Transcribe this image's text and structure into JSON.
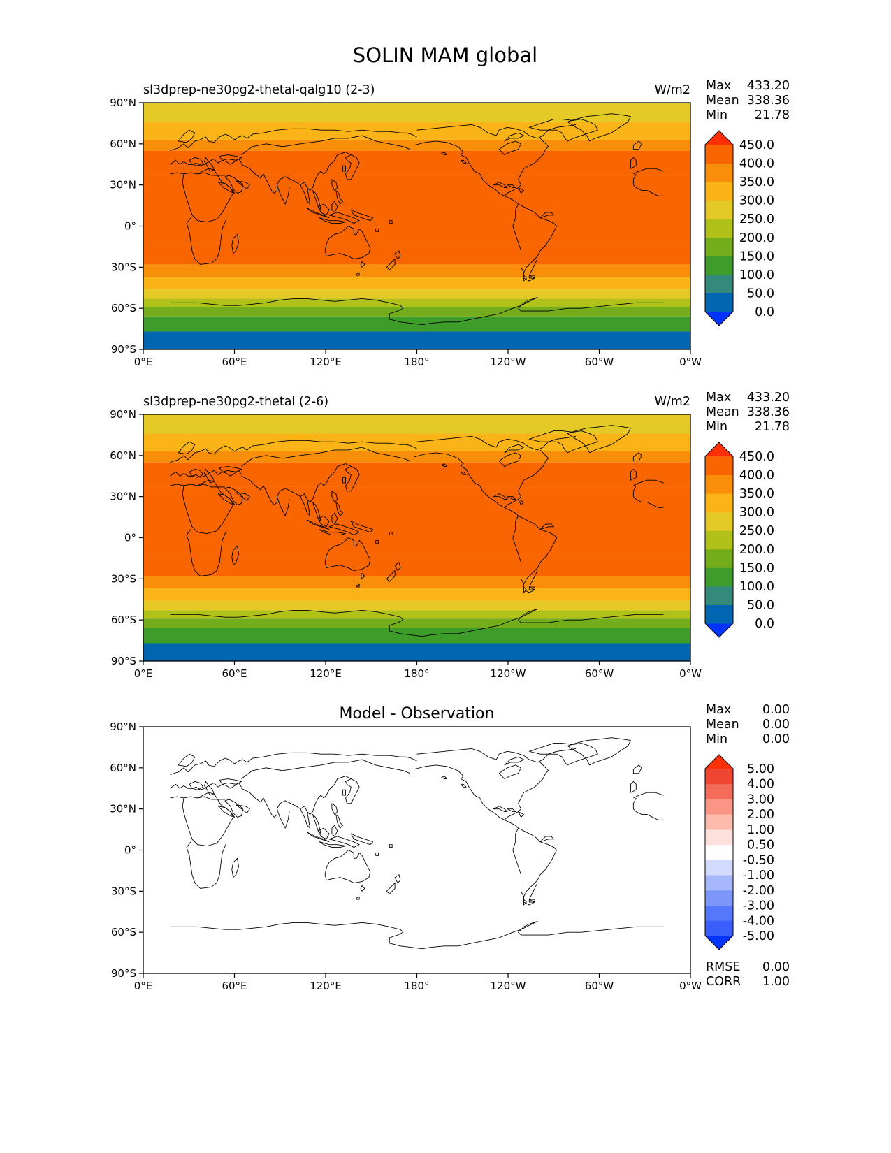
{
  "figure": {
    "title": "SOLIN MAM global"
  },
  "chart_data": [
    {
      "type": "heatmap",
      "title": "sl3dprep-ne30pg2-thetal-qalg10 (2-3)",
      "units": "W/m2",
      "stats": {
        "Max": "433.20",
        "Mean": "338.36",
        "Min": "21.78"
      },
      "x_tick_labels": [
        "0°E",
        "60°E",
        "120°E",
        "180°",
        "120°W",
        "60°W",
        "0°W"
      ],
      "y_tick_labels": [
        "90°S",
        "60°S",
        "30°S",
        "0°",
        "30°N",
        "60°N",
        "90°N"
      ],
      "xlim": [
        0,
        360
      ],
      "ylim": [
        -90,
        90
      ],
      "colorbar_levels": [
        0,
        50,
        100,
        150,
        200,
        250,
        300,
        350,
        400,
        450
      ],
      "colorbar_labels": [
        "0.0",
        "50.0",
        "100.0",
        "150.0",
        "200.0",
        "250.0",
        "300.0",
        "350.0",
        "400.0",
        "450.0"
      ],
      "colorbar_colors": [
        "#0033ff",
        "#0166b2",
        "#33897a",
        "#3d9c2a",
        "#74ad1c",
        "#b0c21a",
        "#e5c926",
        "#fbb418",
        "#f98e0b",
        "#f96500",
        "#ff2f06"
      ],
      "latitude_bands": [
        {
          "lat_from": -90,
          "lat_to": -77,
          "value": 21.78
        },
        {
          "lat_from": -77,
          "lat_to": -66,
          "value": 100
        },
        {
          "lat_from": -66,
          "lat_to": -59,
          "value": 150
        },
        {
          "lat_from": -59,
          "lat_to": -53,
          "value": 200
        },
        {
          "lat_from": -53,
          "lat_to": -46,
          "value": 250
        },
        {
          "lat_from": -46,
          "lat_to": -37,
          "value": 300
        },
        {
          "lat_from": -37,
          "lat_to": -28,
          "value": 350
        },
        {
          "lat_from": -28,
          "lat_to": -12,
          "value": 400
        },
        {
          "lat_from": -12,
          "lat_to": 37,
          "value": 433.2
        },
        {
          "lat_from": 37,
          "lat_to": 55,
          "value": 400
        },
        {
          "lat_from": 55,
          "lat_to": 63,
          "value": 350
        },
        {
          "lat_from": 63,
          "lat_to": 76,
          "value": 300
        },
        {
          "lat_from": 76,
          "lat_to": 90,
          "value": 250
        }
      ]
    },
    {
      "type": "heatmap",
      "title": "sl3dprep-ne30pg2-thetal (2-6)",
      "units": "W/m2",
      "stats": {
        "Max": "433.20",
        "Mean": "338.36",
        "Min": "21.78"
      },
      "x_tick_labels": [
        "0°E",
        "60°E",
        "120°E",
        "180°",
        "120°W",
        "60°W",
        "0°W"
      ],
      "y_tick_labels": [
        "90°S",
        "60°S",
        "30°S",
        "0°",
        "30°N",
        "60°N",
        "90°N"
      ],
      "xlim": [
        0,
        360
      ],
      "ylim": [
        -90,
        90
      ],
      "colorbar_levels": [
        0,
        50,
        100,
        150,
        200,
        250,
        300,
        350,
        400,
        450
      ],
      "colorbar_labels": [
        "0.0",
        "50.0",
        "100.0",
        "150.0",
        "200.0",
        "250.0",
        "300.0",
        "350.0",
        "400.0",
        "450.0"
      ],
      "colorbar_colors": [
        "#0033ff",
        "#0166b2",
        "#33897a",
        "#3d9c2a",
        "#74ad1c",
        "#b0c21a",
        "#e5c926",
        "#fbb418",
        "#f98e0b",
        "#f96500",
        "#ff2f06"
      ],
      "latitude_bands": [
        {
          "lat_from": -90,
          "lat_to": -77,
          "value": 21.78
        },
        {
          "lat_from": -77,
          "lat_to": -66,
          "value": 100
        },
        {
          "lat_from": -66,
          "lat_to": -59,
          "value": 150
        },
        {
          "lat_from": -59,
          "lat_to": -53,
          "value": 200
        },
        {
          "lat_from": -53,
          "lat_to": -46,
          "value": 250
        },
        {
          "lat_from": -46,
          "lat_to": -37,
          "value": 300
        },
        {
          "lat_from": -37,
          "lat_to": -28,
          "value": 350
        },
        {
          "lat_from": -28,
          "lat_to": -12,
          "value": 400
        },
        {
          "lat_from": -12,
          "lat_to": 37,
          "value": 433.2
        },
        {
          "lat_from": 37,
          "lat_to": 55,
          "value": 400
        },
        {
          "lat_from": 55,
          "lat_to": 63,
          "value": 350
        },
        {
          "lat_from": 63,
          "lat_to": 76,
          "value": 300
        },
        {
          "lat_from": 76,
          "lat_to": 90,
          "value": 250
        }
      ]
    },
    {
      "type": "heatmap",
      "title": "Model - Observation",
      "units": "",
      "stats": {
        "Max": "0.00",
        "Mean": "0.00",
        "Min": "0.00"
      },
      "footer_stats": {
        "RMSE": "0.00",
        "CORR": "1.00"
      },
      "x_tick_labels": [
        "0°E",
        "60°E",
        "120°E",
        "180°",
        "120°W",
        "60°W",
        "0°W"
      ],
      "y_tick_labels": [
        "90°S",
        "60°S",
        "30°S",
        "0°",
        "30°N",
        "60°N",
        "90°N"
      ],
      "xlim": [
        0,
        360
      ],
      "ylim": [
        -90,
        90
      ],
      "colorbar_levels": [
        -5,
        -4,
        -3,
        -2,
        -1,
        -0.5,
        0.5,
        1,
        2,
        3,
        4,
        5
      ],
      "colorbar_labels": [
        "-5.00",
        "-4.00",
        "-3.00",
        "-2.00",
        "-1.00",
        "-0.50",
        "0.50",
        "1.00",
        "2.00",
        "3.00",
        "4.00",
        "5.00"
      ],
      "colorbar_colors": [
        "#0033ff",
        "#3a5efc",
        "#5577fb",
        "#7c97f9",
        "#a6b7fb",
        "#d2dafd",
        "#ffffff",
        "#fde0db",
        "#fdbbae",
        "#fb9585",
        "#f56b59",
        "#f04631",
        "#ff2f06"
      ],
      "latitude_bands": [
        {
          "lat_from": -90,
          "lat_to": 90,
          "value": 0.0
        }
      ]
    }
  ]
}
